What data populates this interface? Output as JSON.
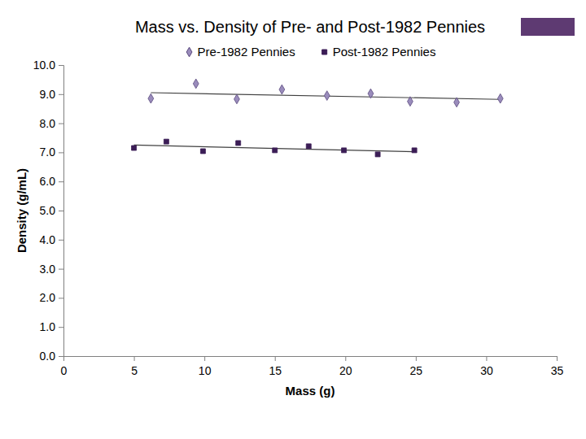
{
  "chart_data": {
    "type": "scatter",
    "title": "Mass vs. Density of Pre- and Post-1982 Pennies",
    "x_label": "Mass (g)",
    "y_label": "Density (g/mL)",
    "xlim": [
      0,
      35
    ],
    "xticks": [
      0,
      5,
      10,
      15,
      20,
      25,
      30,
      35
    ],
    "ylim": [
      0,
      10
    ],
    "yticks": [
      {
        "value": 0,
        "label": "0.0"
      },
      {
        "value": 1,
        "label": "1.0"
      },
      {
        "value": 2,
        "label": "2.0"
      },
      {
        "value": 3,
        "label": "3.0"
      },
      {
        "value": 4,
        "label": "4.0"
      },
      {
        "value": 5,
        "label": "5.0"
      },
      {
        "value": 6,
        "label": "6.0"
      },
      {
        "value": 7,
        "label": "7.0"
      },
      {
        "value": 8,
        "label": "8.0"
      },
      {
        "value": 9,
        "label": "9.0"
      },
      {
        "value": 10,
        "label": "10.0"
      }
    ],
    "grid": false,
    "legend": "top",
    "series": [
      {
        "name": "Pre-1982 Pennies",
        "color": "#9a8cbc",
        "marker": "diamond",
        "x": [
          6.2,
          9.4,
          12.3,
          15.5,
          18.7,
          21.8,
          24.6,
          27.9,
          31.0
        ],
        "values": [
          8.85,
          9.36,
          8.83,
          9.16,
          8.95,
          9.02,
          8.75,
          8.72,
          8.85
        ],
        "trend": {
          "x": [
            6.2,
            31.0
          ],
          "values": [
            9.05,
            8.82
          ]
        }
      },
      {
        "name": "Post-1982 Pennies",
        "color": "#3b1d56",
        "marker": "square",
        "x": [
          5.0,
          7.3,
          9.9,
          12.4,
          15.0,
          17.4,
          19.9,
          22.3,
          24.9
        ],
        "values": [
          7.15,
          7.37,
          7.04,
          7.32,
          7.07,
          7.21,
          7.07,
          6.93,
          7.07
        ],
        "trend": {
          "x": [
            5.0,
            24.9
          ],
          "values": [
            7.25,
            7.02
          ]
        }
      }
    ]
  }
}
